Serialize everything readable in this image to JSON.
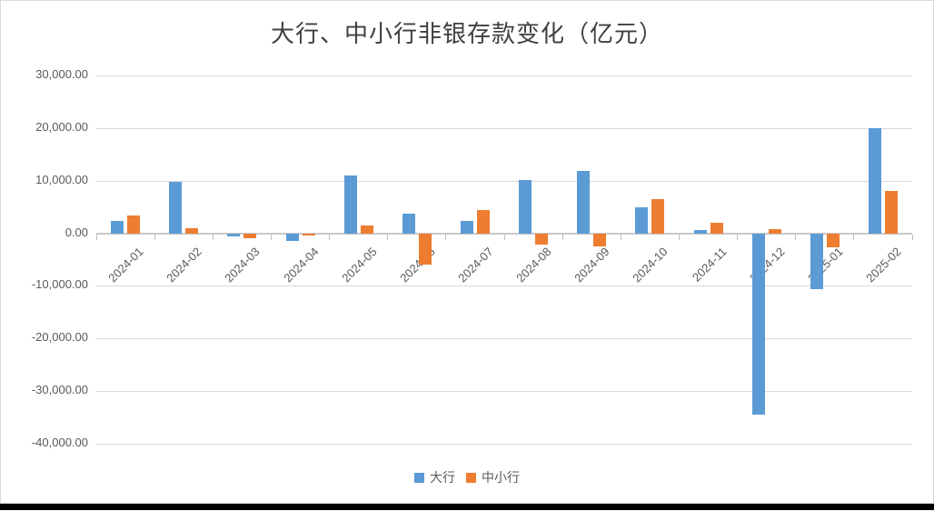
{
  "chart": {
    "title": "大行、中小行非银存款变化（亿元）",
    "legend": [
      {
        "label": "大行",
        "color": "#5B9BD5"
      },
      {
        "label": "中小行",
        "color": "#ED7D31"
      }
    ]
  },
  "chart_data": {
    "type": "bar",
    "title": "大行、中小行非银存款变化（亿元）",
    "categories": [
      "2024-01",
      "2024-02",
      "2024-03",
      "2024-04",
      "2024-05",
      "2024-06",
      "2024-07",
      "2024-08",
      "2024-09",
      "2024-10",
      "2024-11",
      "2024-12",
      "2025-01",
      "2025-02"
    ],
    "series": [
      {
        "name": "大行",
        "slug": "dahang",
        "color": "#5B9BD5",
        "values": [
          2300,
          9800,
          -600,
          -1500,
          11000,
          3700,
          2400,
          10100,
          11800,
          5000,
          700,
          -34400,
          -10700,
          20000
        ]
      },
      {
        "name": "中小行",
        "slug": "zhongxiaohang",
        "color": "#ED7D31",
        "values": [
          3400,
          1000,
          -900,
          -400,
          1400,
          -5900,
          4400,
          -2200,
          -2500,
          6500,
          2000,
          800,
          -2600,
          8000
        ]
      }
    ],
    "xlabel": "",
    "ylabel": "",
    "ylim": [
      -40000,
      30000
    ],
    "ytick_step": 10000,
    "yticks": [
      {
        "value": 30000,
        "label": "30,000.00"
      },
      {
        "value": 20000,
        "label": "20,000.00"
      },
      {
        "value": 10000,
        "label": "10,000.00"
      },
      {
        "value": 0,
        "label": "0.00"
      },
      {
        "value": -10000,
        "label": "-10,000.00"
      },
      {
        "value": -20000,
        "label": "-20,000.00"
      },
      {
        "value": -30000,
        "label": "-30,000.00"
      },
      {
        "value": -40000,
        "label": "-40,000.00"
      }
    ],
    "grid": true,
    "legend_position": "bottom",
    "gridline_color": "#D9D9D9",
    "axis_line_color": "#C9C9C9",
    "label_color": "#595959"
  }
}
